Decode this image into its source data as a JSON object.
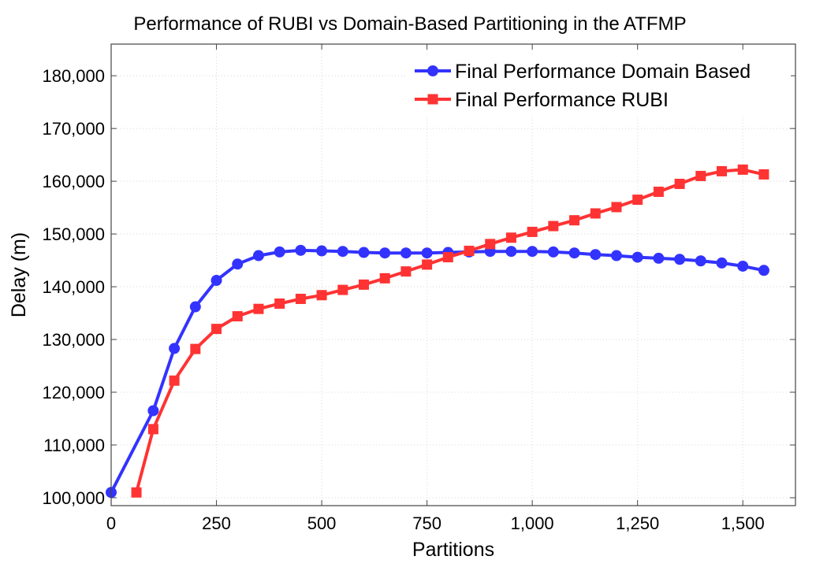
{
  "chart_data": {
    "type": "line",
    "title": "Performance of RUBI vs Domain-Based Partitioning in the ATFMP",
    "xlabel": "Partitions",
    "ylabel": "Delay (m)",
    "xlim": [
      0,
      1625
    ],
    "ylim": [
      98500,
      186000
    ],
    "xticks": [
      0,
      250,
      500,
      750,
      1000,
      1250,
      1500
    ],
    "xtick_labels": [
      "0",
      "250",
      "500",
      "750",
      "1,000",
      "1,250",
      "1,500"
    ],
    "yticks": [
      100000,
      110000,
      120000,
      130000,
      140000,
      150000,
      160000,
      170000,
      180000
    ],
    "ytick_labels": [
      "100,000",
      "110,000",
      "120,000",
      "130,000",
      "140,000",
      "150,000",
      "160,000",
      "170,000",
      "180,000"
    ],
    "grid": true,
    "legend_position": "top-right",
    "series": [
      {
        "name": "Final Performance Domain Based",
        "color": "#3333ff",
        "marker": "circle",
        "x": [
          0,
          100,
          150,
          200,
          250,
          300,
          350,
          400,
          450,
          500,
          550,
          600,
          650,
          700,
          750,
          800,
          850,
          900,
          950,
          1000,
          1050,
          1100,
          1150,
          1200,
          1250,
          1300,
          1350,
          1400,
          1450,
          1500,
          1550
        ],
        "values": [
          101000,
          116500,
          128300,
          136200,
          141200,
          144300,
          145900,
          146600,
          146900,
          146800,
          146700,
          146500,
          146400,
          146400,
          146400,
          146500,
          146600,
          146700,
          146700,
          146700,
          146600,
          146400,
          146100,
          145900,
          145600,
          145400,
          145200,
          144900,
          144500,
          143900,
          143100
        ]
      },
      {
        "name": "Final Performance RUBI",
        "color": "#ff3333",
        "marker": "square",
        "x": [
          60,
          100,
          150,
          200,
          250,
          300,
          350,
          400,
          450,
          500,
          550,
          600,
          650,
          700,
          750,
          800,
          850,
          900,
          950,
          1000,
          1050,
          1100,
          1150,
          1200,
          1250,
          1300,
          1350,
          1400,
          1450,
          1500,
          1550
        ],
        "values": [
          101000,
          113000,
          122200,
          128200,
          132000,
          134400,
          135800,
          136800,
          137700,
          138400,
          139400,
          140400,
          141600,
          142900,
          144200,
          145600,
          146800,
          148100,
          149300,
          150400,
          151500,
          152600,
          153900,
          155100,
          156500,
          158000,
          159500,
          161000,
          161900,
          162200,
          161300
        ]
      }
    ]
  }
}
